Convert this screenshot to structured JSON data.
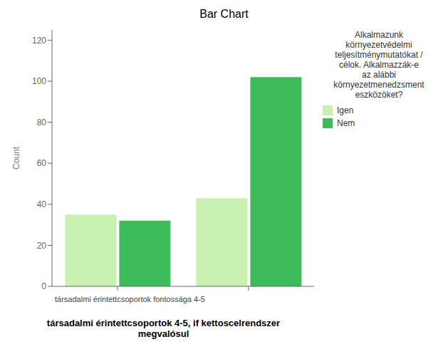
{
  "chart_data": {
    "type": "bar",
    "title": "Bar Chart",
    "xlabel": "társadalmi érintettcsoportok 4-5, if kettoscelrendszer\nmegvalósul",
    "ylabel": "Count",
    "categories": [
      "társadalmi érintettcsoportok fontossága 4-5",
      null
    ],
    "series": [
      {
        "name": "Igen",
        "color": "#c8f0b0",
        "values": [
          35,
          43
        ]
      },
      {
        "name": "Nem",
        "color": "#3dba5a",
        "values": [
          32,
          102
        ]
      }
    ],
    "legend_title": "Alkalmazunk\nkörnyezetvédelmi\nteljesítménymutatókat /\ncélok. Alkalmazzák-e\naz alábbi\nkörnyezetmenedzsment\neszközöket?",
    "ylim": [
      0,
      125
    ],
    "yticks": [
      0,
      20,
      40,
      60,
      80,
      100,
      120
    ],
    "grid": false,
    "legend": "right"
  }
}
